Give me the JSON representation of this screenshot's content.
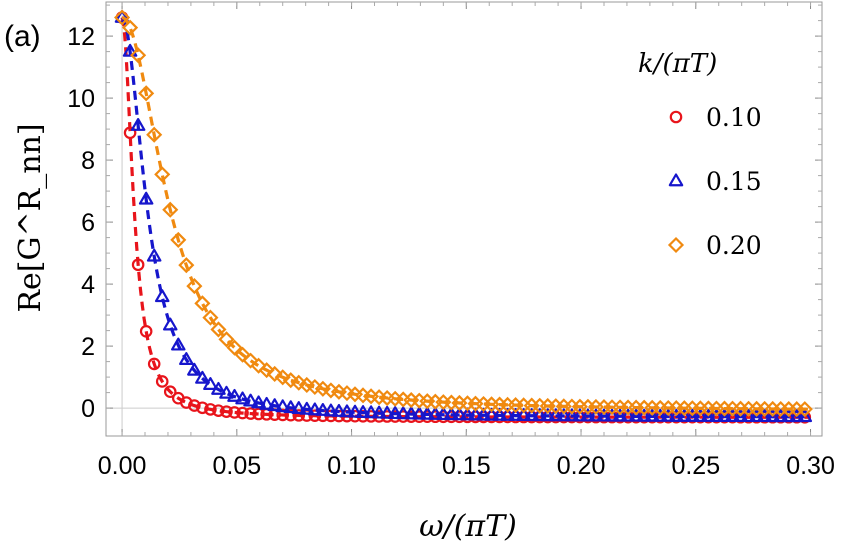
{
  "chart_data": {
    "type": "scatter",
    "panel_label": "(a)",
    "xlabel": "ω/(πT)",
    "ylabel": "Re[G^R_nn]",
    "xlim": [
      -0.007,
      0.305
    ],
    "ylim": [
      -0.9,
      13.1
    ],
    "xticks": [
      0.0,
      0.05,
      0.1,
      0.15,
      0.2,
      0.25,
      0.3
    ],
    "xtick_labels": [
      "0.00",
      "0.05",
      "0.10",
      "0.15",
      "0.20",
      "0.25",
      "0.30"
    ],
    "yticks": [
      0,
      2,
      4,
      6,
      8,
      10,
      12
    ],
    "ytick_labels": [
      "0",
      "2",
      "4",
      "6",
      "8",
      "10",
      "12"
    ],
    "legend": {
      "title": "k/(πT)",
      "position": "top-right"
    },
    "series": [
      {
        "name": "0.10",
        "label": "0.10",
        "marker": "circle",
        "color": "#e8141b",
        "b": 0.0055,
        "inf": -0.3
      },
      {
        "name": "0.15",
        "label": "0.15",
        "marker": "triangle",
        "color": "#1616cc",
        "b": 0.0115,
        "inf": -0.3
      },
      {
        "name": "0.20",
        "label": "0.20",
        "marker": "diamond",
        "color": "#f08a10",
        "b": 0.0215,
        "inf": -0.1
      }
    ],
    "model_note": "Re[G] = inf + (12.6 - inf) / (1 + (ω/b)^2); markers every 0.0035 in ω/(πT), dashed fit lines"
  }
}
